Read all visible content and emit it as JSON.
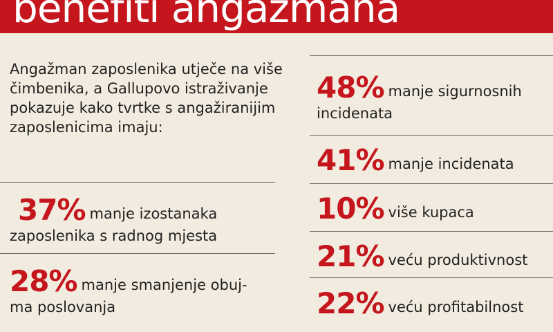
{
  "title": "benefiti angažmana",
  "intro": "Angažman zaposlenika utječe na više čimbenika, a Gallupovo istraživanje pokazuje kako tvrtke s angažiranijim zaposlenicima imaju:",
  "left_stats": [
    {
      "percent": "37%",
      "line1": "manje izostanaka",
      "line2": "zaposlenika s radnog mjesta"
    },
    {
      "percent": "28%",
      "line1": "manje smanjenje obuj-",
      "line2": "ma poslovanja"
    }
  ],
  "right_stats": [
    {
      "percent": "48%",
      "line1": "manje sigurnosnih",
      "line2": "incidenata"
    },
    {
      "percent": "41%",
      "line1": "manje incidenata"
    },
    {
      "percent": "10%",
      "line1": "više kupaca"
    },
    {
      "percent": "21%",
      "line1": "veću produktivnost"
    },
    {
      "percent": "22%",
      "line1": "veću profitabilnost"
    }
  ],
  "colors": {
    "accent": "#c4161c",
    "background": "#f1ecdf",
    "text": "#231f20"
  }
}
